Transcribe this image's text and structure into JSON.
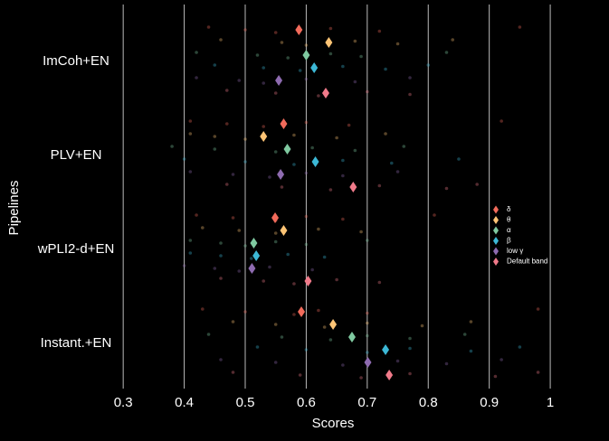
{
  "chart_data": {
    "type": "strip",
    "xlabel": "Scores",
    "ylabel": "Pipelines",
    "categories": [
      "ImCoh+EN",
      "PLV+EN",
      "wPLI2-d+EN",
      "Instant.+EN"
    ],
    "xlim": [
      0.19,
      1.077
    ],
    "xticks": [
      0.3,
      0.4,
      0.5,
      0.6,
      0.7,
      0.8,
      0.9,
      1.0
    ],
    "grid": true,
    "legend": "right",
    "series": [
      {
        "name": "δ",
        "color": "#f26b5b",
        "values": [
          0.588,
          0.563,
          0.549,
          0.592
        ],
        "points": [
          [
            0.44,
            0.5,
            0.55,
            0.64,
            0.72,
            0.95
          ],
          [
            0.41,
            0.47,
            0.53,
            0.6,
            0.67,
            0.92
          ],
          [
            0.42,
            0.48,
            0.55,
            0.6,
            0.66,
            0.81
          ],
          [
            0.43,
            0.5,
            0.58,
            0.62,
            0.7,
            0.98
          ]
        ]
      },
      {
        "name": "θ",
        "color": "#fdc475",
        "values": [
          0.637,
          0.53,
          0.563,
          0.644
        ],
        "points": [
          [
            0.46,
            0.56,
            0.6,
            0.68,
            0.75,
            0.84
          ],
          [
            0.41,
            0.45,
            0.5,
            0.58,
            0.65,
            0.73
          ],
          [
            0.43,
            0.49,
            0.55,
            0.62,
            0.69
          ],
          [
            0.48,
            0.55,
            0.63,
            0.7,
            0.79,
            0.87
          ]
        ]
      },
      {
        "name": "α",
        "color": "#7fc9a0",
        "values": [
          0.6,
          0.569,
          0.514,
          0.675
        ],
        "points": [
          [
            0.42,
            0.52,
            0.57,
            0.64,
            0.69,
            0.83
          ],
          [
            0.38,
            0.45,
            0.55,
            0.61,
            0.68,
            0.76
          ],
          [
            0.41,
            0.46,
            0.5,
            0.55,
            0.6,
            0.7
          ],
          [
            0.44,
            0.56,
            0.64,
            0.7,
            0.77,
            0.86
          ]
        ]
      },
      {
        "name": "β",
        "color": "#3cb8d6",
        "values": [
          0.613,
          0.615,
          0.518,
          0.73
        ],
        "points": [
          [
            0.45,
            0.53,
            0.59,
            0.66,
            0.73,
            0.8
          ],
          [
            0.4,
            0.5,
            0.58,
            0.66,
            0.74,
            0.85
          ],
          [
            0.41,
            0.46,
            0.51,
            0.57,
            0.63
          ],
          [
            0.52,
            0.6,
            0.7,
            0.77,
            0.87,
            0.95
          ]
        ]
      },
      {
        "name": "low γ",
        "color": "#8e6bb0",
        "values": [
          0.555,
          0.558,
          0.511,
          0.701
        ],
        "points": [
          [
            0.42,
            0.49,
            0.53,
            0.6,
            0.68,
            0.77
          ],
          [
            0.41,
            0.48,
            0.54,
            0.6,
            0.66,
            0.75
          ],
          [
            0.4,
            0.45,
            0.49,
            0.54,
            0.61
          ],
          [
            0.46,
            0.55,
            0.66,
            0.75,
            0.83,
            0.92
          ]
        ]
      },
      {
        "name": "Default band",
        "color": "#f07a8a",
        "values": [
          0.632,
          0.677,
          0.603,
          0.736
        ],
        "points": [
          [
            0.47,
            0.55,
            0.62,
            0.7,
            0.77
          ],
          [
            0.47,
            0.56,
            0.64,
            0.72,
            0.83,
            0.88
          ],
          [
            0.46,
            0.53,
            0.58,
            0.65,
            0.72
          ],
          [
            0.48,
            0.59,
            0.69,
            0.77,
            0.91,
            0.98
          ]
        ]
      }
    ]
  }
}
